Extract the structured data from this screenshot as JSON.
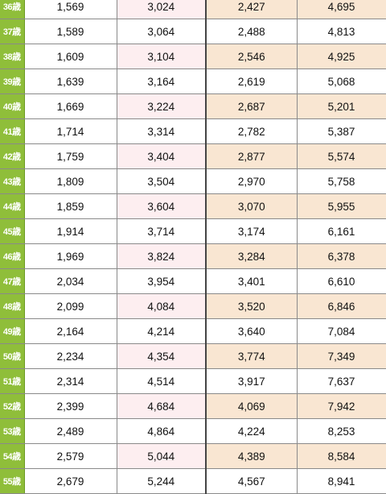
{
  "rows": [
    {
      "age": "36歳",
      "v1": "1,569",
      "v2": "3,024",
      "v3": "2,427",
      "v4": "4,695"
    },
    {
      "age": "37歳",
      "v1": "1,589",
      "v2": "3,064",
      "v3": "2,488",
      "v4": "4,813"
    },
    {
      "age": "38歳",
      "v1": "1,609",
      "v2": "3,104",
      "v3": "2,546",
      "v4": "4,925"
    },
    {
      "age": "39歳",
      "v1": "1,639",
      "v2": "3,164",
      "v3": "2,619",
      "v4": "5,068"
    },
    {
      "age": "40歳",
      "v1": "1,669",
      "v2": "3,224",
      "v3": "2,687",
      "v4": "5,201"
    },
    {
      "age": "41歳",
      "v1": "1,714",
      "v2": "3,314",
      "v3": "2,782",
      "v4": "5,387"
    },
    {
      "age": "42歳",
      "v1": "1,759",
      "v2": "3,404",
      "v3": "2,877",
      "v4": "5,574"
    },
    {
      "age": "43歳",
      "v1": "1,809",
      "v2": "3,504",
      "v3": "2,970",
      "v4": "5,758"
    },
    {
      "age": "44歳",
      "v1": "1,859",
      "v2": "3,604",
      "v3": "3,070",
      "v4": "5,955"
    },
    {
      "age": "45歳",
      "v1": "1,914",
      "v2": "3,714",
      "v3": "3,174",
      "v4": "6,161"
    },
    {
      "age": "46歳",
      "v1": "1,969",
      "v2": "3,824",
      "v3": "3,284",
      "v4": "6,378"
    },
    {
      "age": "47歳",
      "v1": "2,034",
      "v2": "3,954",
      "v3": "3,401",
      "v4": "6,610"
    },
    {
      "age": "48歳",
      "v1": "2,099",
      "v2": "4,084",
      "v3": "3,520",
      "v4": "6,846"
    },
    {
      "age": "49歳",
      "v1": "2,164",
      "v2": "4,214",
      "v3": "3,640",
      "v4": "7,084"
    },
    {
      "age": "50歳",
      "v1": "2,234",
      "v2": "4,354",
      "v3": "3,774",
      "v4": "7,349"
    },
    {
      "age": "51歳",
      "v1": "2,314",
      "v2": "4,514",
      "v3": "3,917",
      "v4": "7,637"
    },
    {
      "age": "52歳",
      "v1": "2,399",
      "v2": "4,684",
      "v3": "4,069",
      "v4": "7,942"
    },
    {
      "age": "53歳",
      "v1": "2,489",
      "v2": "4,864",
      "v3": "4,224",
      "v4": "8,253"
    },
    {
      "age": "54歳",
      "v1": "2,579",
      "v2": "5,044",
      "v3": "4,389",
      "v4": "8,584"
    },
    {
      "age": "55歳",
      "v1": "2,679",
      "v2": "5,244",
      "v3": "4,567",
      "v4": "8,941"
    }
  ],
  "colors": {
    "age_bg": "#8fbe3a",
    "pink": "#fdeef0",
    "peach": "#f9e6d2",
    "white": "#ffffff"
  }
}
